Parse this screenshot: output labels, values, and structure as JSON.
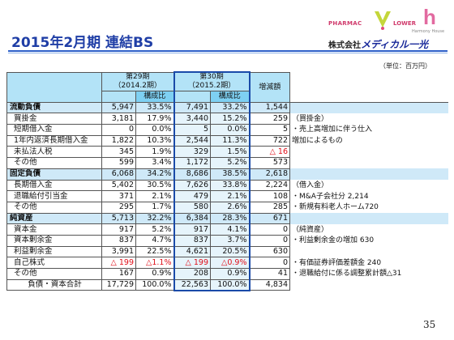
{
  "title": "2015年2月期  連結BS",
  "logo": {
    "pharmac": "PHARMAC",
    "lower": "LOWER",
    "h": "h",
    "harmony": "Harmony House",
    "company_prefix": "株式会社",
    "company_brand": "メディカル一光"
  },
  "unit": "（単位：百万円）",
  "headers": {
    "fy29_line1": "第29期",
    "fy29_line2": "（2014.2期）",
    "fy30_line1": "第30期",
    "fy30_line2": "（2015.2期）",
    "ratio": "構成比",
    "change": "増減額"
  },
  "rows": [
    {
      "label": "流動負債",
      "v29": "5,947",
      "r29": "33.5%",
      "v30": "7,491",
      "r30": "33.2%",
      "chg": "1,544",
      "note": "",
      "section": true
    },
    {
      "label": "買掛金",
      "v29": "3,181",
      "r29": "17.9%",
      "v30": "3,440",
      "r30": "15.2%",
      "chg": "259",
      "note": "（買掛金）"
    },
    {
      "label": "短期借入金",
      "v29": "0",
      "r29": "0.0%",
      "v30": "5",
      "r30": "0.0%",
      "chg": "5",
      "note": "・売上高増加に伴う仕入"
    },
    {
      "label": "1年内返済長期借入金",
      "v29": "1,822",
      "r29": "10.3%",
      "v30": "2,544",
      "r30": "11.3%",
      "chg": "722",
      "note": "  増加によるもの"
    },
    {
      "label": "未払法人税",
      "v29": "345",
      "r29": "1.9%",
      "v30": "329",
      "r30": "1.5%",
      "chg": "△ 16",
      "note": "",
      "chg_red": true
    },
    {
      "label": "その他",
      "v29": "599",
      "r29": "3.4%",
      "v30": "1,172",
      "r30": "5.2%",
      "chg": "573",
      "note": ""
    },
    {
      "label": "固定負債",
      "v29": "6,068",
      "r29": "34.2%",
      "v30": "8,686",
      "r30": "38.5%",
      "chg": "2,618",
      "note": "",
      "section": true
    },
    {
      "label": "長期借入金",
      "v29": "5,402",
      "r29": "30.5%",
      "v30": "7,626",
      "r30": "33.8%",
      "chg": "2,224",
      "note": "（借入金）"
    },
    {
      "label": "退職給付引当金",
      "v29": "371",
      "r29": "2.1%",
      "v30": "479",
      "r30": "2.1%",
      "chg": "108",
      "note": "・M&A子会社分 2,214"
    },
    {
      "label": "その他",
      "v29": "295",
      "r29": "1.7%",
      "v30": "580",
      "r30": "2.6%",
      "chg": "285",
      "note": "・新規有料老人ホーム720"
    },
    {
      "label": "純資産",
      "v29": "5,713",
      "r29": "32.2%",
      "v30": "6,384",
      "r30": "28.3%",
      "chg": "671",
      "note": "",
      "section": true
    },
    {
      "label": "資本金",
      "v29": "917",
      "r29": "5.2%",
      "v30": "917",
      "r30": "4.1%",
      "chg": "0",
      "note": "（純資産）"
    },
    {
      "label": "資本剰余金",
      "v29": "837",
      "r29": "4.7%",
      "v30": "837",
      "r30": "3.7%",
      "chg": "0",
      "note": "・利益剰余金の増加 630"
    },
    {
      "label": "利益剰余金",
      "v29": "3,991",
      "r29": "22.5%",
      "v30": "4,621",
      "r30": "20.5%",
      "chg": "630",
      "note": ""
    },
    {
      "label": "自己株式",
      "v29": "△ 199",
      "r29": "△1.1%",
      "v30": "△ 199",
      "r30": "△0.9%",
      "chg": "0",
      "note": "・有価証券評価差額金 240",
      "red": true
    },
    {
      "label": "その他",
      "v29": "167",
      "r29": "0.9%",
      "v30": "208",
      "r30": "0.9%",
      "chg": "41",
      "note": "・退職給付に係る調整累計額△31"
    },
    {
      "label": "負債・資本合計",
      "v29": "17,729",
      "r29": "100.0%",
      "v30": "22,563",
      "r30": "100.0%",
      "chg": "4,834",
      "note": "",
      "total": true
    }
  ],
  "page_number": "35"
}
